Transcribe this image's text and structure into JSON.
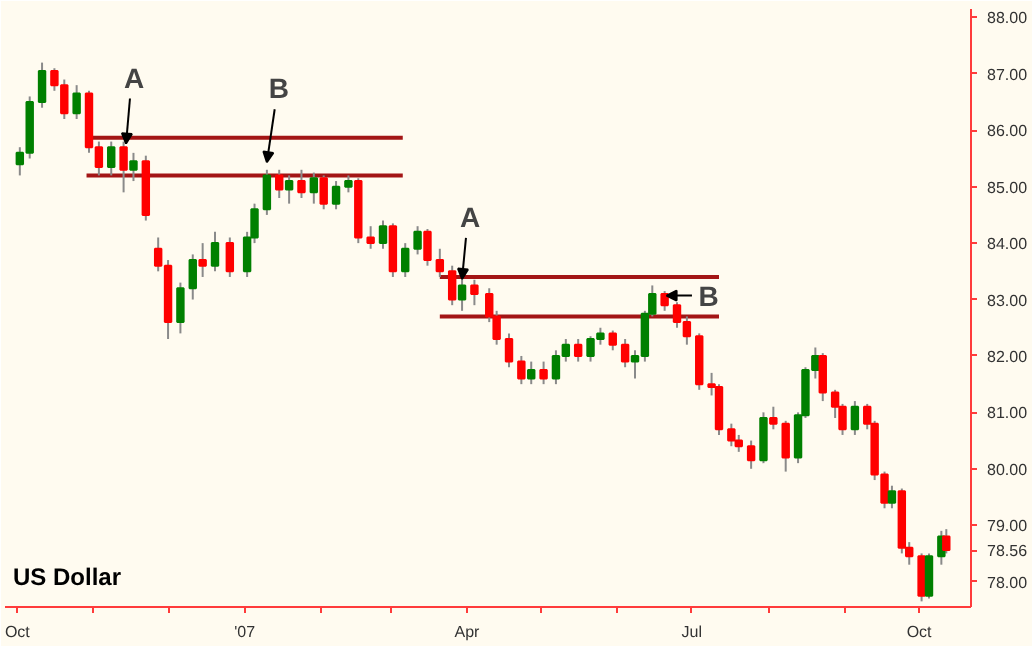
{
  "chart_data": {
    "type": "candlestick",
    "title": "US Dollar",
    "x": [
      "2006-10-02",
      "2006-10-06",
      "2006-10-11",
      "2006-10-16",
      "2006-10-20",
      "2006-10-25",
      "2006-10-30",
      "2006-11-03",
      "2006-11-08",
      "2006-11-13",
      "2006-11-17",
      "2006-11-22",
      "2006-11-27",
      "2006-12-01",
      "2006-12-06",
      "2006-12-11",
      "2006-12-15",
      "2006-12-20",
      "2006-12-26",
      "2007-01-02",
      "2007-01-05",
      "2007-01-10",
      "2007-01-15",
      "2007-01-19",
      "2007-01-24",
      "2007-01-29",
      "2007-02-02",
      "2007-02-07",
      "2007-02-12",
      "2007-02-16",
      "2007-02-21",
      "2007-02-26",
      "2007-03-02",
      "2007-03-07",
      "2007-03-12",
      "2007-03-16",
      "2007-03-21",
      "2007-03-26",
      "2007-03-30",
      "2007-04-04",
      "2007-04-10",
      "2007-04-13",
      "2007-04-18",
      "2007-04-23",
      "2007-04-27",
      "2007-05-02",
      "2007-05-07",
      "2007-05-11",
      "2007-05-16",
      "2007-05-21",
      "2007-05-25",
      "2007-05-30",
      "2007-06-04",
      "2007-06-08",
      "2007-06-12",
      "2007-06-15",
      "2007-06-20",
      "2007-06-25",
      "2007-06-29",
      "2007-07-04",
      "2007-07-09",
      "2007-07-12",
      "2007-07-17",
      "2007-07-20",
      "2007-07-25",
      "2007-07-30",
      "2007-08-03",
      "2007-08-08",
      "2007-08-13",
      "2007-08-16",
      "2007-08-20",
      "2007-08-23",
      "2007-08-28",
      "2007-08-31",
      "2007-09-05",
      "2007-09-10",
      "2007-09-13",
      "2007-09-17",
      "2007-09-20",
      "2007-09-24",
      "2007-09-27",
      "2007-10-02",
      "2007-10-05",
      "2007-10-10",
      "2007-10-12"
    ],
    "ohlc": [
      [
        85.4,
        85.7,
        85.2,
        85.6
      ],
      [
        85.6,
        86.6,
        85.5,
        86.5
      ],
      [
        86.5,
        87.2,
        86.4,
        87.05
      ],
      [
        87.05,
        87.1,
        86.7,
        86.8
      ],
      [
        86.8,
        86.9,
        86.2,
        86.3
      ],
      [
        86.3,
        86.8,
        86.2,
        86.65
      ],
      [
        86.65,
        86.7,
        85.6,
        85.7
      ],
      [
        85.7,
        85.8,
        85.2,
        85.35
      ],
      [
        85.35,
        85.8,
        85.2,
        85.7
      ],
      [
        85.7,
        85.8,
        84.9,
        85.3
      ],
      [
        85.3,
        85.6,
        85.1,
        85.45
      ],
      [
        85.45,
        85.55,
        84.4,
        84.5
      ],
      [
        83.9,
        84.1,
        83.5,
        83.6
      ],
      [
        83.6,
        83.7,
        82.3,
        82.6
      ],
      [
        82.6,
        83.3,
        82.4,
        83.2
      ],
      [
        83.2,
        83.8,
        83.0,
        83.7
      ],
      [
        83.7,
        84.0,
        83.4,
        83.6
      ],
      [
        83.6,
        84.2,
        83.5,
        84.0
      ],
      [
        84.0,
        84.1,
        83.4,
        83.5
      ],
      [
        83.5,
        84.2,
        83.4,
        84.1
      ],
      [
        84.1,
        84.7,
        84.0,
        84.6
      ],
      [
        84.6,
        85.3,
        84.5,
        85.2
      ],
      [
        85.2,
        85.3,
        84.8,
        84.95
      ],
      [
        84.95,
        85.2,
        84.7,
        85.1
      ],
      [
        85.1,
        85.3,
        84.8,
        84.9
      ],
      [
        84.9,
        85.25,
        84.7,
        85.15
      ],
      [
        85.15,
        85.2,
        84.6,
        84.7
      ],
      [
        84.7,
        85.1,
        84.6,
        85.0
      ],
      [
        85.0,
        85.2,
        84.9,
        85.1
      ],
      [
        85.1,
        85.15,
        84.0,
        84.1
      ],
      [
        84.1,
        84.3,
        83.9,
        84.0
      ],
      [
        84.0,
        84.4,
        83.9,
        84.3
      ],
      [
        84.3,
        84.35,
        83.4,
        83.5
      ],
      [
        83.5,
        84.0,
        83.4,
        83.9
      ],
      [
        83.9,
        84.3,
        83.8,
        84.2
      ],
      [
        84.2,
        84.25,
        83.6,
        83.7
      ],
      [
        83.7,
        83.9,
        83.4,
        83.5
      ],
      [
        83.5,
        83.6,
        82.9,
        83.0
      ],
      [
        83.0,
        83.4,
        82.8,
        83.25
      ],
      [
        83.25,
        83.35,
        82.9,
        83.1
      ],
      [
        83.1,
        83.2,
        82.6,
        82.7
      ],
      [
        82.7,
        82.8,
        82.2,
        82.3
      ],
      [
        82.3,
        82.4,
        81.8,
        81.9
      ],
      [
        81.9,
        82.0,
        81.5,
        81.6
      ],
      [
        81.6,
        81.9,
        81.5,
        81.75
      ],
      [
        81.75,
        81.9,
        81.5,
        81.6
      ],
      [
        81.6,
        82.1,
        81.5,
        82.0
      ],
      [
        82.0,
        82.3,
        81.9,
        82.2
      ],
      [
        82.2,
        82.3,
        81.9,
        82.0
      ],
      [
        82.0,
        82.35,
        81.9,
        82.3
      ],
      [
        82.3,
        82.5,
        82.2,
        82.4
      ],
      [
        82.4,
        82.45,
        82.1,
        82.2
      ],
      [
        82.2,
        82.3,
        81.8,
        81.9
      ],
      [
        81.9,
        82.1,
        81.6,
        82.0
      ],
      [
        82.0,
        82.8,
        81.9,
        82.75
      ],
      [
        82.75,
        83.25,
        82.7,
        83.1
      ],
      [
        83.1,
        83.15,
        82.8,
        82.9
      ],
      [
        82.9,
        82.95,
        82.5,
        82.6
      ],
      [
        82.6,
        82.7,
        82.2,
        82.35
      ],
      [
        82.35,
        82.4,
        81.4,
        81.5
      ],
      [
        81.5,
        81.7,
        81.3,
        81.45
      ],
      [
        81.45,
        81.5,
        80.6,
        80.7
      ],
      [
        80.7,
        80.8,
        80.4,
        80.5
      ],
      [
        80.5,
        80.6,
        80.3,
        80.4
      ],
      [
        80.4,
        80.5,
        80.0,
        80.15
      ],
      [
        80.15,
        81.0,
        80.1,
        80.9
      ],
      [
        80.9,
        81.1,
        80.7,
        80.8
      ],
      [
        80.8,
        80.85,
        79.95,
        80.2
      ],
      [
        80.2,
        81.0,
        80.1,
        80.95
      ],
      [
        80.95,
        81.8,
        80.9,
        81.75
      ],
      [
        81.75,
        82.15,
        81.6,
        82.0
      ],
      [
        82.0,
        82.05,
        81.2,
        81.35
      ],
      [
        81.35,
        81.4,
        80.9,
        81.1
      ],
      [
        81.1,
        81.15,
        80.6,
        80.7
      ],
      [
        80.7,
        81.2,
        80.6,
        81.1
      ],
      [
        81.1,
        81.15,
        80.7,
        80.8
      ],
      [
        80.8,
        80.85,
        79.8,
        79.9
      ],
      [
        79.9,
        79.95,
        79.3,
        79.4
      ],
      [
        79.4,
        79.7,
        79.3,
        79.6
      ],
      [
        79.6,
        79.65,
        78.5,
        78.6
      ],
      [
        78.6,
        78.7,
        78.3,
        78.45
      ],
      [
        78.45,
        78.5,
        77.65,
        77.75
      ],
      [
        77.75,
        78.5,
        77.7,
        78.45
      ],
      [
        78.45,
        78.9,
        78.3,
        78.8
      ],
      [
        78.8,
        78.93,
        78.5,
        78.56
      ]
    ],
    "colors": [
      "#008000",
      "#008000",
      "#008000",
      "#ff0000",
      "#ff0000",
      "#008000",
      "#ff0000",
      "#ff0000",
      "#008000",
      "#ff0000",
      "#008000",
      "#ff0000",
      "#ff0000",
      "#ff0000",
      "#008000",
      "#008000",
      "#ff0000",
      "#008000",
      "#ff0000",
      "#008000",
      "#008000",
      "#008000",
      "#ff0000",
      "#008000",
      "#ff0000",
      "#008000",
      "#ff0000",
      "#008000",
      "#008000",
      "#ff0000",
      "#ff0000",
      "#008000",
      "#ff0000",
      "#008000",
      "#008000",
      "#ff0000",
      "#ff0000",
      "#ff0000",
      "#008000",
      "#ff0000",
      "#ff0000",
      "#ff0000",
      "#ff0000",
      "#ff0000",
      "#008000",
      "#ff0000",
      "#008000",
      "#008000",
      "#ff0000",
      "#008000",
      "#008000",
      "#ff0000",
      "#ff0000",
      "#008000",
      "#008000",
      "#008000",
      "#ff0000",
      "#ff0000",
      "#ff0000",
      "#ff0000",
      "#ff0000",
      "#ff0000",
      "#ff0000",
      "#ff0000",
      "#ff0000",
      "#008000",
      "#ff0000",
      "#ff0000",
      "#008000",
      "#008000",
      "#008000",
      "#ff0000",
      "#ff0000",
      "#ff0000",
      "#008000",
      "#ff0000",
      "#ff0000",
      "#ff0000",
      "#008000",
      "#ff0000",
      "#ff0000",
      "#ff0000",
      "#008000",
      "#008000",
      "#ff0000"
    ],
    "series": [
      {
        "type": "line",
        "x": [
          "2006-10-29",
          "2007-03-06"
        ],
        "values": [
          85.87,
          85.87
        ],
        "color": "#a31515"
      },
      {
        "type": "line",
        "x": [
          "2006-10-29",
          "2007-03-06"
        ],
        "values": [
          85.2,
          85.2
        ],
        "color": "#a31515"
      },
      {
        "type": "line",
        "x": [
          "2007-03-21",
          "2007-07-12"
        ],
        "values": [
          83.4,
          83.4
        ],
        "color": "#a31515"
      },
      {
        "type": "line",
        "x": [
          "2007-03-21",
          "2007-07-12"
        ],
        "values": [
          82.7,
          82.7
        ],
        "color": "#a31515"
      }
    ],
    "annotations": [
      {
        "text": "A",
        "x": "2006-11-14",
        "y": 85.73
      },
      {
        "text": "B",
        "x": "2007-01-10",
        "y": 85.4
      },
      {
        "text": "A",
        "x": "2007-03-30",
        "y": 83.33
      },
      {
        "text": "B",
        "x": "2007-06-20",
        "y": 83.07
      }
    ],
    "xlim": [
      "2006-09-26",
      "2007-10-22"
    ],
    "xticks": [
      {
        "value": "2006-10-01",
        "label": "Oct"
      },
      {
        "value": "2006-11-01",
        "label": null
      },
      {
        "value": "2006-12-01",
        "label": null
      },
      {
        "value": "2007-01-01",
        "label": "'07"
      },
      {
        "value": "2007-02-01",
        "label": null
      },
      {
        "value": "2007-03-01",
        "label": null
      },
      {
        "value": "2007-04-01",
        "label": "Apr"
      },
      {
        "value": "2007-05-01",
        "label": null
      },
      {
        "value": "2007-06-01",
        "label": null
      },
      {
        "value": "2007-07-01",
        "label": "Jul"
      },
      {
        "value": "2007-08-01",
        "label": null
      },
      {
        "value": "2007-09-01",
        "label": null
      },
      {
        "value": "2007-10-01",
        "label": "Oct"
      }
    ],
    "ylim": [
      77.55,
      88.15
    ],
    "yticks": [
      {
        "value": 78,
        "label": "78.00"
      },
      {
        "value": 78.56,
        "label": "78.56"
      },
      {
        "value": 79,
        "label": "79.00"
      },
      {
        "value": 80,
        "label": "80.00"
      },
      {
        "value": 81,
        "label": "81.00"
      },
      {
        "value": 82,
        "label": "82.00"
      },
      {
        "value": 83,
        "label": "83.00"
      },
      {
        "value": 84,
        "label": "84.00"
      },
      {
        "value": 85,
        "label": "85.00"
      },
      {
        "value": 86,
        "label": "86.00"
      },
      {
        "value": 87,
        "label": "87.00"
      },
      {
        "value": 88,
        "label": "88.00"
      }
    ],
    "grid": false
  }
}
